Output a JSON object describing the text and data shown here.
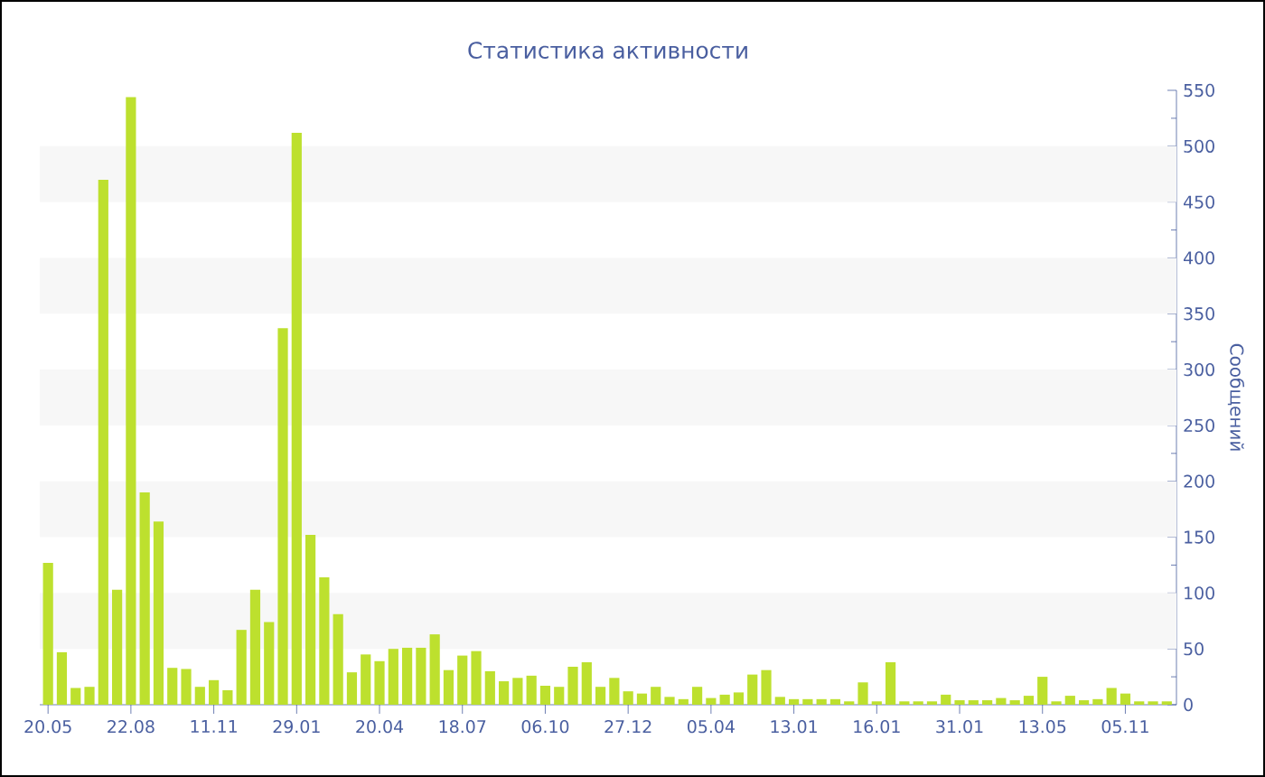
{
  "chart_data": {
    "type": "bar",
    "title": "Статистика активности",
    "ylabel": "Сообщений",
    "categories": [
      "20.05",
      null,
      null,
      null,
      null,
      null,
      "22.08",
      null,
      null,
      null,
      null,
      null,
      "11.11",
      null,
      null,
      null,
      null,
      null,
      "29.01",
      null,
      null,
      null,
      null,
      null,
      "20.04",
      null,
      null,
      null,
      null,
      null,
      "18.07",
      null,
      null,
      null,
      null,
      null,
      "06.10",
      null,
      null,
      null,
      null,
      null,
      "27.12",
      null,
      null,
      null,
      null,
      null,
      "05.04",
      null,
      null,
      null,
      null,
      null,
      "13.01",
      null,
      null,
      null,
      null,
      null,
      "16.01",
      null,
      null,
      null,
      null,
      null,
      "31.01",
      null,
      null,
      null,
      null,
      null,
      "13.05",
      null,
      null,
      null,
      null,
      null,
      "05.11",
      null,
      null,
      null
    ],
    "values": [
      127,
      47,
      15,
      16,
      470,
      103,
      544,
      190,
      164,
      33,
      32,
      16,
      22,
      13,
      67,
      103,
      74,
      337,
      512,
      152,
      114,
      81,
      29,
      45,
      39,
      50,
      51,
      51,
      63,
      31,
      44,
      48,
      30,
      21,
      24,
      26,
      17,
      16,
      34,
      38,
      16,
      24,
      12,
      10,
      16,
      7,
      5,
      16,
      6,
      9,
      11,
      27,
      31,
      7,
      5,
      5,
      5,
      5,
      3,
      20,
      3,
      38,
      3,
      3,
      3,
      9,
      4,
      4,
      4,
      6,
      4,
      8,
      25,
      3,
      8,
      4,
      5,
      15,
      10,
      3,
      3,
      3
    ],
    "color": "#bde02e",
    "ylim": [
      0,
      550
    ],
    "yticks": [
      0,
      50,
      100,
      150,
      200,
      250,
      300,
      350,
      400,
      450,
      500,
      550
    ],
    "bands": [
      {
        "axis": "y",
        "from": 50,
        "to": 100,
        "color": "#f7f7f7"
      },
      {
        "axis": "y",
        "from": 150,
        "to": 200,
        "color": "#f7f7f7"
      },
      {
        "axis": "y",
        "from": 250,
        "to": 300,
        "color": "#f7f7f7"
      },
      {
        "axis": "y",
        "from": 350,
        "to": 400,
        "color": "#f7f7f7"
      },
      {
        "axis": "y",
        "from": 450,
        "to": 500,
        "color": "#f7f7f7"
      }
    ]
  }
}
